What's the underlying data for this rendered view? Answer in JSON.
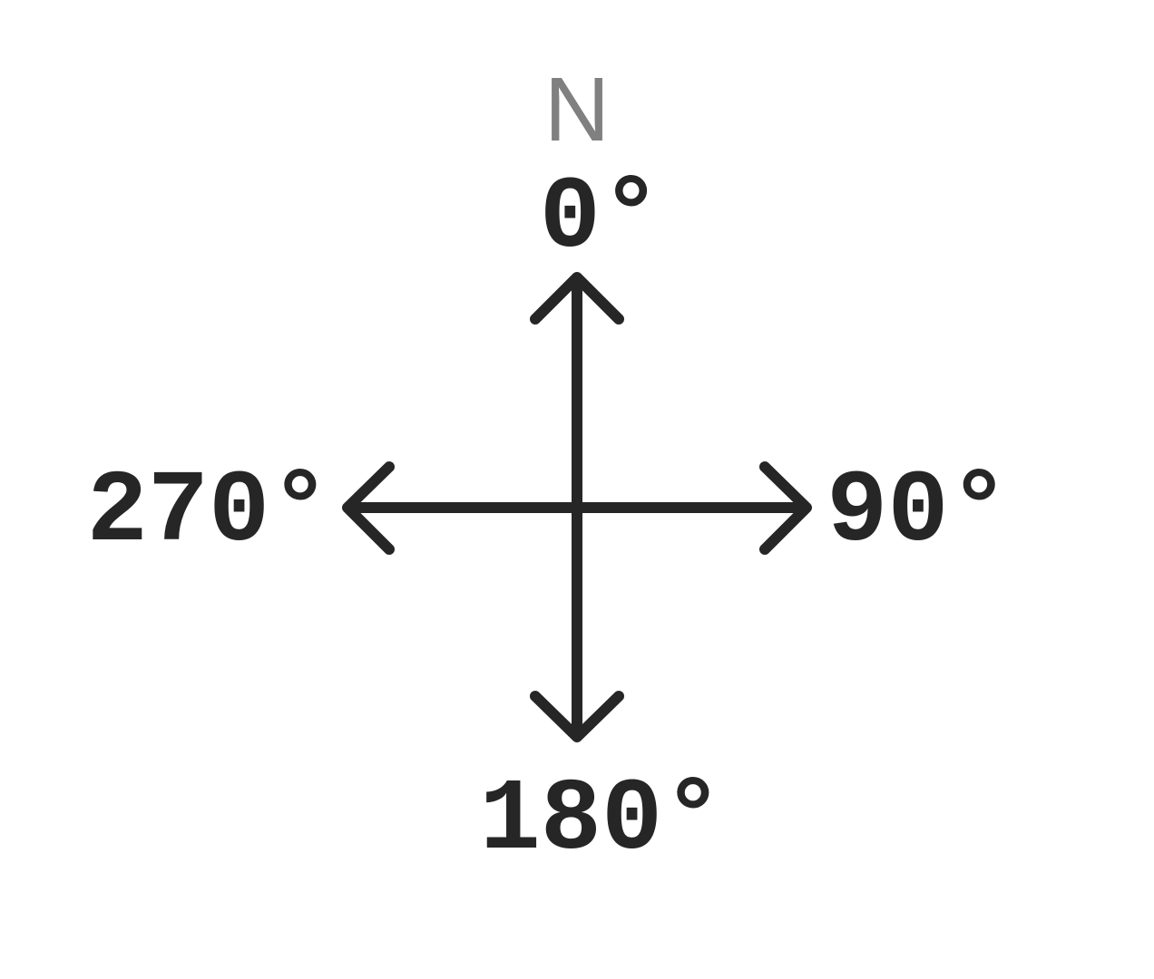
{
  "diagram": {
    "north_label": "N",
    "directions": {
      "north": "0°",
      "east": "90°",
      "south": "180°",
      "west": "270°"
    },
    "colors": {
      "ink": "#262626",
      "north_label": "#808080",
      "background": "#ffffff"
    }
  }
}
